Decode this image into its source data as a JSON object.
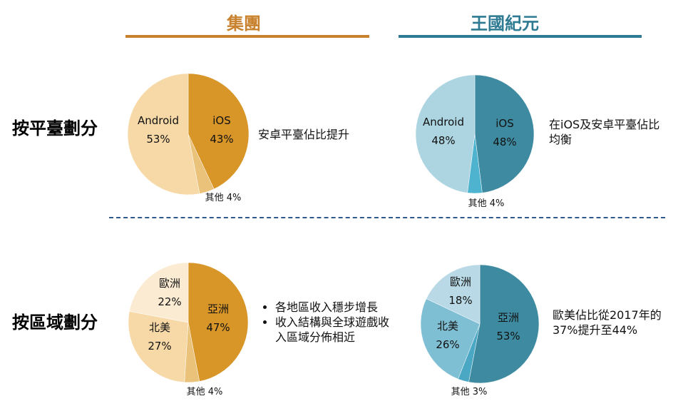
{
  "headers": {
    "group": {
      "label": "集團",
      "color": "#C8822E"
    },
    "kingdom": {
      "label": "王國紀元",
      "color": "#2E7B93"
    }
  },
  "rows": {
    "platform": "按平臺劃分",
    "region": "按區域劃分"
  },
  "notes": {
    "group_platform": "安卓平臺佔比提升",
    "kingdom_platform": "在iOS及安卓平臺佔比均衡",
    "group_region_bullets": [
      "各地區收入穩步增長",
      "收入結構與全球遊戲收入區域分佈相近"
    ],
    "kingdom_region": "歐美佔比從2017年的37%提升至44%"
  },
  "chart_data": [
    {
      "type": "pie",
      "panel": "group-platform",
      "slices": [
        {
          "label": "iOS",
          "value": 43,
          "text": "43%",
          "color": "#D89528"
        },
        {
          "label": "其他",
          "value": 4,
          "text": "其他 4%",
          "color": "#EBC27A"
        },
        {
          "label": "Android",
          "value": 53,
          "text": "53%",
          "color": "#F6D9A6"
        }
      ]
    },
    {
      "type": "pie",
      "panel": "kingdom-platform",
      "slices": [
        {
          "label": "iOS",
          "value": 48,
          "text": "48%",
          "color": "#3E8BA1"
        },
        {
          "label": "其他",
          "value": 4,
          "text": "其他 4%",
          "color": "#4EB3CF"
        },
        {
          "label": "Android",
          "value": 48,
          "text": "48%",
          "color": "#ADD4E1"
        }
      ]
    },
    {
      "type": "pie",
      "panel": "group-region",
      "slices": [
        {
          "label": "亞洲",
          "value": 47,
          "text": "47%",
          "color": "#D89528"
        },
        {
          "label": "其他",
          "value": 4,
          "text": "其他 4%",
          "color": "#EBC27A"
        },
        {
          "label": "北美",
          "value": 27,
          "text": "27%",
          "color": "#F6D9A6"
        },
        {
          "label": "歐洲",
          "value": 22,
          "text": "22%",
          "color": "#FBEBD2"
        }
      ]
    },
    {
      "type": "pie",
      "panel": "kingdom-region",
      "slices": [
        {
          "label": "亞洲",
          "value": 53,
          "text": "53%",
          "color": "#3E8BA1"
        },
        {
          "label": "其他",
          "value": 3,
          "text": "其他 3%",
          "color": "#4BA8C4"
        },
        {
          "label": "北美",
          "value": 26,
          "text": "26%",
          "color": "#7FBFD3"
        },
        {
          "label": "歐洲",
          "value": 18,
          "text": "18%",
          "color": "#B8D9E5"
        }
      ]
    }
  ]
}
